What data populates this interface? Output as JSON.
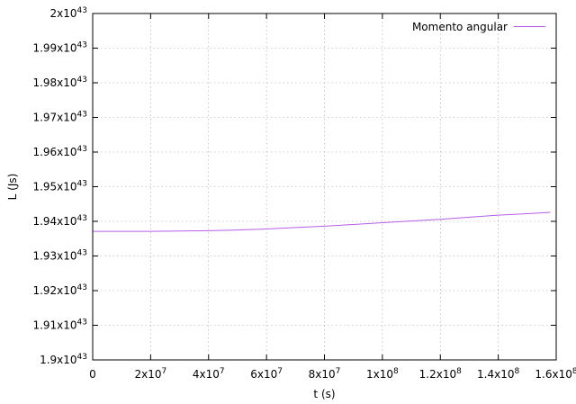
{
  "chart_data": {
    "type": "line",
    "xlabel": "t (s)",
    "ylabel": "L (Js)",
    "xlim": [
      0,
      160000000
    ],
    "ylim": [
      1.9e+43,
      2e+43
    ],
    "grid": true,
    "legend_position": "top-right",
    "x_ticks": [
      {
        "value": 0,
        "mant": "0",
        "exp": ""
      },
      {
        "value": 20000000,
        "mant": "2x10",
        "exp": "7"
      },
      {
        "value": 40000000,
        "mant": "4x10",
        "exp": "7"
      },
      {
        "value": 60000000,
        "mant": "6x10",
        "exp": "7"
      },
      {
        "value": 80000000,
        "mant": "8x10",
        "exp": "7"
      },
      {
        "value": 100000000,
        "mant": "1x10",
        "exp": "8"
      },
      {
        "value": 120000000,
        "mant": "1.2x10",
        "exp": "8"
      },
      {
        "value": 140000000,
        "mant": "1.4x10",
        "exp": "8"
      },
      {
        "value": 160000000,
        "mant": "1.6x10",
        "exp": "8"
      }
    ],
    "y_ticks": [
      {
        "value": 1.9e+43,
        "mant": "1.9x10",
        "exp": "43"
      },
      {
        "value": 1.91e+43,
        "mant": "1.91x10",
        "exp": "43"
      },
      {
        "value": 1.92e+43,
        "mant": "1.92x10",
        "exp": "43"
      },
      {
        "value": 1.93e+43,
        "mant": "1.93x10",
        "exp": "43"
      },
      {
        "value": 1.94e+43,
        "mant": "1.94x10",
        "exp": "43"
      },
      {
        "value": 1.95e+43,
        "mant": "1.95x10",
        "exp": "43"
      },
      {
        "value": 1.96e+43,
        "mant": "1.96x10",
        "exp": "43"
      },
      {
        "value": 1.97e+43,
        "mant": "1.97x10",
        "exp": "43"
      },
      {
        "value": 1.98e+43,
        "mant": "1.98x10",
        "exp": "43"
      },
      {
        "value": 1.99e+43,
        "mant": "1.99x10",
        "exp": "43"
      },
      {
        "value": 2e+43,
        "mant": "2x10",
        "exp": "43"
      }
    ],
    "series": [
      {
        "name": "Momento angular",
        "color": "#b65ee8",
        "x": [
          0,
          10000000,
          20000000,
          30000000,
          40000000,
          50000000,
          60000000,
          70000000,
          80000000,
          90000000,
          100000000,
          110000000,
          120000000,
          130000000,
          140000000,
          150000000,
          158000000
        ],
        "y": [
          1.9371e+43,
          1.9371e+43,
          1.9371e+43,
          1.9372e+43,
          1.9373e+43,
          1.9375e+43,
          1.9378e+43,
          1.9382e+43,
          1.9386e+43,
          1.9391e+43,
          1.9396e+43,
          1.9401e+43,
          1.9406e+43,
          1.9412e+43,
          1.9418e+43,
          1.9422e+43,
          1.9426e+43
        ]
      }
    ]
  }
}
